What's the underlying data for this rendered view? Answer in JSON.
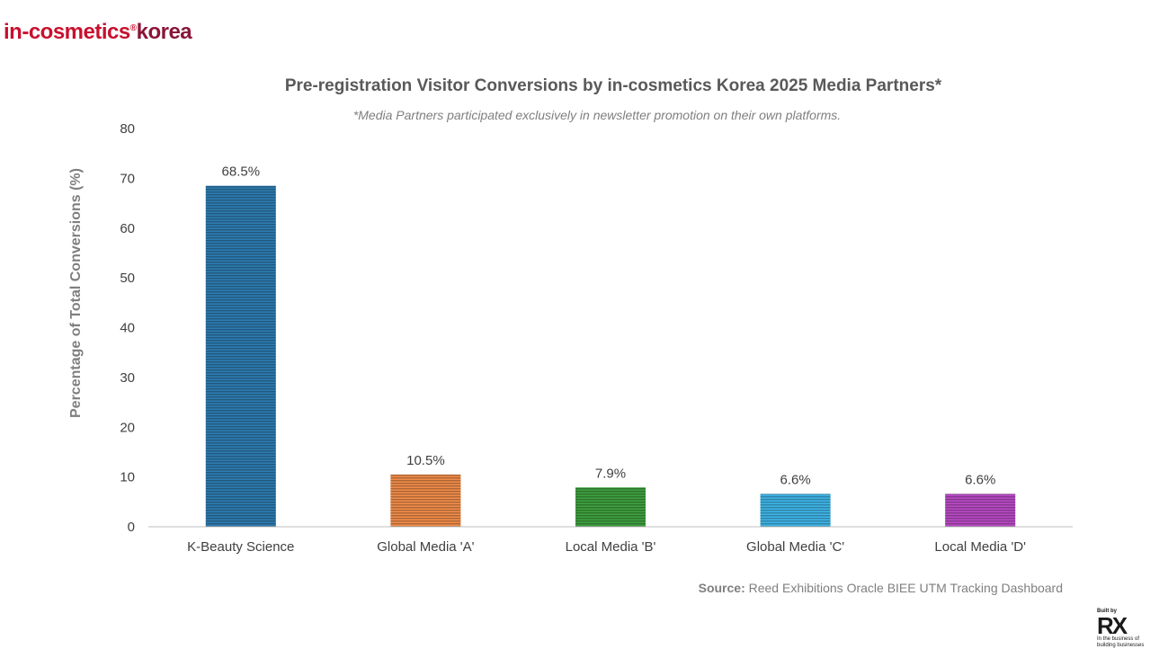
{
  "brand": {
    "logo_part1": "in-cosmetics",
    "logo_reg": "®",
    "logo_part2": "korea"
  },
  "footer": {
    "source_label": "Source:",
    "source_text": "Reed Exhibitions Oracle BIEE UTM Tracking Dashboard",
    "rx_built_by": "Built by",
    "rx_mark": "RX",
    "rx_tagline_1": "In the business of",
    "rx_tagline_2": "building businesses"
  },
  "chart_data": {
    "type": "bar",
    "title": "Pre-registration Visitor Conversions by in-cosmetics Korea 2025 Media Partners*",
    "subtitle": "*Media Partners participated exclusively in newsletter promotion on their own platforms.",
    "xlabel": "",
    "ylabel": "Percentage of Total Conversions (%)",
    "ylim": [
      0,
      80
    ],
    "yticks": [
      0,
      10,
      20,
      30,
      40,
      50,
      60,
      70,
      80
    ],
    "grid": false,
    "categories": [
      "K-Beauty Science",
      "Global Media 'A'",
      "Local Media 'B'",
      "Global Media 'C'",
      "Local Media 'D'"
    ],
    "values": [
      68.5,
      10.5,
      7.9,
      6.6,
      6.6
    ],
    "data_labels": [
      "68.5%",
      "10.5%",
      "7.9%",
      "6.6%",
      "6.6%"
    ],
    "colors": [
      "#2e7bb0",
      "#f08c4a",
      "#3fa03f",
      "#3fb4e6",
      "#b84bc4"
    ]
  }
}
